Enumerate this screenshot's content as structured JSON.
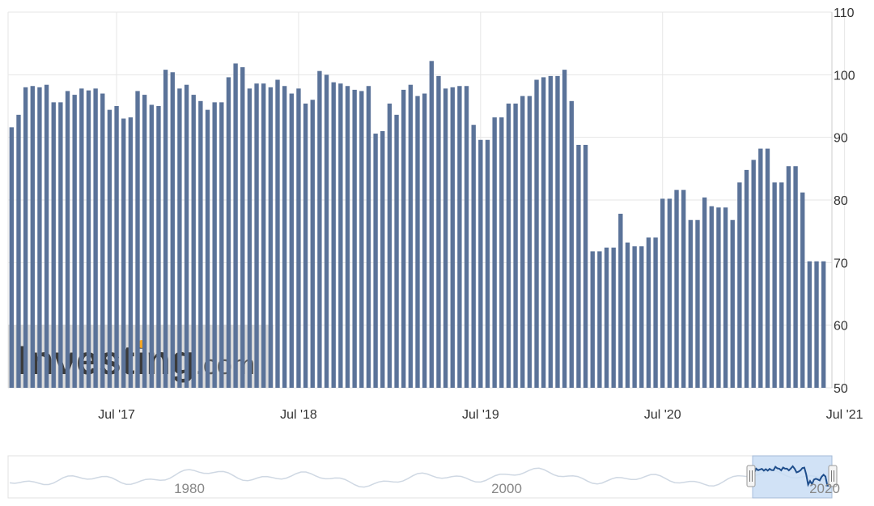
{
  "colors": {
    "bar": "#5b7399",
    "grid": "#e6e6e6",
    "axis_text": "#333333",
    "navigator_line": "#cfd8e3",
    "navigator_selected": "#c9def5",
    "navigator_selected_line": "#1f4e8c",
    "brand_dot": "#f5a623"
  },
  "watermark": {
    "brand": "Investing",
    "suffix": ".com"
  },
  "chart_data": {
    "type": "bar",
    "ylim": [
      50,
      110
    ],
    "yticks": [
      "110",
      "100",
      "90",
      "80",
      "70",
      "60",
      "50"
    ],
    "xlabels": [
      {
        "label": "Jul '17",
        "index": 15
      },
      {
        "label": "Jul '18",
        "index": 41
      },
      {
        "label": "Jul '19",
        "index": 67
      },
      {
        "label": "Jul '20",
        "index": 93
      },
      {
        "label": "Jul '21",
        "index": 119
      }
    ],
    "values": [
      91.6,
      93.6,
      98.0,
      98.2,
      98.0,
      98.4,
      95.6,
      95.6,
      97.4,
      96.8,
      97.8,
      97.5,
      97.8,
      97.0,
      94.4,
      95.0,
      93.0,
      93.2,
      97.4,
      96.8,
      95.2,
      95.0,
      100.8,
      100.4,
      97.8,
      98.4,
      96.8,
      95.8,
      94.4,
      95.6,
      95.6,
      99.6,
      101.8,
      101.2,
      97.8,
      98.6,
      98.6,
      98.0,
      99.2,
      98.2,
      97.0,
      97.8,
      95.4,
      96.0,
      100.6,
      100.0,
      98.8,
      98.6,
      98.2,
      97.6,
      97.4,
      98.2,
      90.6,
      91.0,
      95.4,
      93.6,
      97.6,
      98.4,
      96.6,
      97.0,
      102.2,
      99.8,
      97.8,
      98.0,
      98.2,
      98.2,
      92.0,
      89.6,
      89.6,
      93.2,
      93.2,
      95.4,
      95.4,
      96.6,
      96.6,
      99.2,
      99.6,
      99.8,
      99.8,
      100.8,
      95.8,
      88.8,
      88.8,
      71.8,
      71.8,
      72.4,
      72.4,
      77.8,
      73.2,
      72.6,
      72.6,
      74.0,
      74.0,
      80.2,
      80.2,
      81.6,
      81.6,
      76.8,
      76.8,
      80.4,
      79.0,
      78.8,
      78.8,
      76.8,
      82.8,
      84.8,
      86.4,
      88.2,
      88.2,
      82.8,
      82.8,
      85.4,
      85.4,
      81.2,
      70.2,
      70.2,
      70.2
    ]
  },
  "navigator": {
    "labels": [
      {
        "label": "1980",
        "x": 234
      },
      {
        "label": "2000",
        "x": 626
      },
      {
        "label": "2020",
        "x": 1019
      }
    ]
  }
}
